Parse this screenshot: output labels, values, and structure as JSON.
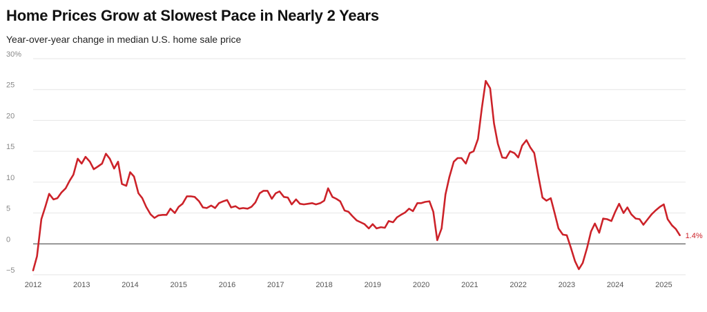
{
  "header": {
    "title": "Home Prices Grow at Slowest Pace in Nearly 2 Years",
    "subtitle": "Year-over-year change in median U.S. home sale price"
  },
  "colors": {
    "line": "#cc2229",
    "grid": "#e6e6e6",
    "zero_line": "#333333"
  },
  "chart_data": {
    "type": "line",
    "title": "Home Prices Grow at Slowest Pace in Nearly 2 Years",
    "subtitle": "Year-over-year change in median U.S. home sale price",
    "xlabel": "",
    "ylabel": "",
    "xlim": [
      2012.0,
      2025.45
    ],
    "ylim": [
      -5,
      30
    ],
    "y_ticks": [
      {
        "value": -5,
        "label": "−5"
      },
      {
        "value": 0,
        "label": "0"
      },
      {
        "value": 5,
        "label": "5"
      },
      {
        "value": 10,
        "label": "10"
      },
      {
        "value": 15,
        "label": "15"
      },
      {
        "value": 20,
        "label": "20"
      },
      {
        "value": 25,
        "label": "25"
      },
      {
        "value": 30,
        "label": "30%"
      }
    ],
    "x_ticks": [
      {
        "value": 2012,
        "label": "2012"
      },
      {
        "value": 2013,
        "label": "2013"
      },
      {
        "value": 2014,
        "label": "2014"
      },
      {
        "value": 2015,
        "label": "2015"
      },
      {
        "value": 2016,
        "label": "2016"
      },
      {
        "value": 2017,
        "label": "2017"
      },
      {
        "value": 2018,
        "label": "2018"
      },
      {
        "value": 2019,
        "label": "2019"
      },
      {
        "value": 2020,
        "label": "2020"
      },
      {
        "value": 2021,
        "label": "2021"
      },
      {
        "value": 2022,
        "label": "2022"
      },
      {
        "value": 2023,
        "label": "2023"
      },
      {
        "value": 2024,
        "label": "2024"
      },
      {
        "value": 2025,
        "label": "2025"
      }
    ],
    "grid": true,
    "legend": "none",
    "end_label": "1.4%",
    "series": [
      {
        "points": [
          [
            2012.0,
            -4.3
          ],
          [
            2012.08,
            -2.0
          ],
          [
            2012.17,
            4.0
          ],
          [
            2012.25,
            6.0
          ],
          [
            2012.33,
            8.1
          ],
          [
            2012.42,
            7.2
          ],
          [
            2012.5,
            7.4
          ],
          [
            2012.58,
            8.3
          ],
          [
            2012.67,
            9.0
          ],
          [
            2012.75,
            10.2
          ],
          [
            2012.83,
            11.2
          ],
          [
            2012.92,
            13.8
          ],
          [
            2013.0,
            13.0
          ],
          [
            2013.08,
            14.1
          ],
          [
            2013.17,
            13.3
          ],
          [
            2013.25,
            12.1
          ],
          [
            2013.33,
            12.5
          ],
          [
            2013.42,
            13.0
          ],
          [
            2013.5,
            14.6
          ],
          [
            2013.58,
            13.8
          ],
          [
            2013.67,
            12.2
          ],
          [
            2013.75,
            13.3
          ],
          [
            2013.83,
            9.7
          ],
          [
            2013.92,
            9.4
          ],
          [
            2014.0,
            11.6
          ],
          [
            2014.08,
            10.9
          ],
          [
            2014.17,
            8.2
          ],
          [
            2014.25,
            7.4
          ],
          [
            2014.33,
            6.0
          ],
          [
            2014.42,
            4.8
          ],
          [
            2014.5,
            4.2
          ],
          [
            2014.58,
            4.6
          ],
          [
            2014.67,
            4.7
          ],
          [
            2014.75,
            4.7
          ],
          [
            2014.83,
            5.7
          ],
          [
            2014.92,
            5.0
          ],
          [
            2015.0,
            6.0
          ],
          [
            2015.08,
            6.5
          ],
          [
            2015.17,
            7.7
          ],
          [
            2015.25,
            7.7
          ],
          [
            2015.33,
            7.6
          ],
          [
            2015.42,
            6.9
          ],
          [
            2015.5,
            5.9
          ],
          [
            2015.58,
            5.8
          ],
          [
            2015.67,
            6.2
          ],
          [
            2015.75,
            5.8
          ],
          [
            2015.83,
            6.6
          ],
          [
            2015.92,
            6.9
          ],
          [
            2016.0,
            7.1
          ],
          [
            2016.08,
            5.9
          ],
          [
            2016.17,
            6.1
          ],
          [
            2016.25,
            5.7
          ],
          [
            2016.33,
            5.8
          ],
          [
            2016.42,
            5.7
          ],
          [
            2016.5,
            6.0
          ],
          [
            2016.58,
            6.7
          ],
          [
            2016.67,
            8.2
          ],
          [
            2016.75,
            8.6
          ],
          [
            2016.83,
            8.6
          ],
          [
            2016.92,
            7.3
          ],
          [
            2017.0,
            8.2
          ],
          [
            2017.08,
            8.5
          ],
          [
            2017.17,
            7.6
          ],
          [
            2017.25,
            7.5
          ],
          [
            2017.33,
            6.4
          ],
          [
            2017.42,
            7.2
          ],
          [
            2017.5,
            6.5
          ],
          [
            2017.58,
            6.4
          ],
          [
            2017.67,
            6.5
          ],
          [
            2017.75,
            6.6
          ],
          [
            2017.83,
            6.4
          ],
          [
            2017.92,
            6.6
          ],
          [
            2018.0,
            7.0
          ],
          [
            2018.08,
            9.0
          ],
          [
            2018.17,
            7.6
          ],
          [
            2018.25,
            7.3
          ],
          [
            2018.33,
            6.9
          ],
          [
            2018.42,
            5.4
          ],
          [
            2018.5,
            5.2
          ],
          [
            2018.58,
            4.5
          ],
          [
            2018.67,
            3.8
          ],
          [
            2018.75,
            3.5
          ],
          [
            2018.83,
            3.2
          ],
          [
            2018.92,
            2.5
          ],
          [
            2019.0,
            3.2
          ],
          [
            2019.08,
            2.5
          ],
          [
            2019.17,
            2.7
          ],
          [
            2019.25,
            2.6
          ],
          [
            2019.33,
            3.7
          ],
          [
            2019.42,
            3.5
          ],
          [
            2019.5,
            4.3
          ],
          [
            2019.58,
            4.7
          ],
          [
            2019.67,
            5.1
          ],
          [
            2019.75,
            5.7
          ],
          [
            2019.83,
            5.3
          ],
          [
            2019.92,
            6.6
          ],
          [
            2020.0,
            6.6
          ],
          [
            2020.08,
            6.8
          ],
          [
            2020.17,
            6.9
          ],
          [
            2020.25,
            5.2
          ],
          [
            2020.33,
            0.6
          ],
          [
            2020.42,
            2.5
          ],
          [
            2020.5,
            8.0
          ],
          [
            2020.58,
            10.8
          ],
          [
            2020.67,
            13.3
          ],
          [
            2020.75,
            13.9
          ],
          [
            2020.83,
            13.9
          ],
          [
            2020.92,
            13.0
          ],
          [
            2021.0,
            14.7
          ],
          [
            2021.08,
            15.0
          ],
          [
            2021.17,
            17.0
          ],
          [
            2021.25,
            22.0
          ],
          [
            2021.33,
            26.4
          ],
          [
            2021.42,
            25.2
          ],
          [
            2021.5,
            19.5
          ],
          [
            2021.58,
            16.2
          ],
          [
            2021.67,
            14.0
          ],
          [
            2021.75,
            13.9
          ],
          [
            2021.83,
            15.0
          ],
          [
            2021.92,
            14.7
          ],
          [
            2022.0,
            14.0
          ],
          [
            2022.08,
            15.9
          ],
          [
            2022.17,
            16.8
          ],
          [
            2022.25,
            15.6
          ],
          [
            2022.33,
            14.7
          ],
          [
            2022.42,
            10.8
          ],
          [
            2022.5,
            7.5
          ],
          [
            2022.58,
            7.0
          ],
          [
            2022.67,
            7.4
          ],
          [
            2022.75,
            5.0
          ],
          [
            2022.83,
            2.5
          ],
          [
            2022.92,
            1.5
          ],
          [
            2023.0,
            1.4
          ],
          [
            2023.08,
            -0.5
          ],
          [
            2023.17,
            -2.8
          ],
          [
            2023.25,
            -4.1
          ],
          [
            2023.33,
            -3.1
          ],
          [
            2023.42,
            -0.6
          ],
          [
            2023.5,
            2.0
          ],
          [
            2023.58,
            3.3
          ],
          [
            2023.67,
            1.8
          ],
          [
            2023.75,
            4.1
          ],
          [
            2023.83,
            4.0
          ],
          [
            2023.92,
            3.7
          ],
          [
            2024.0,
            5.2
          ],
          [
            2024.08,
            6.5
          ],
          [
            2024.17,
            5.0
          ],
          [
            2024.25,
            5.9
          ],
          [
            2024.33,
            4.8
          ],
          [
            2024.42,
            4.1
          ],
          [
            2024.5,
            4.0
          ],
          [
            2024.58,
            3.1
          ],
          [
            2024.67,
            4.0
          ],
          [
            2024.75,
            4.8
          ],
          [
            2024.83,
            5.4
          ],
          [
            2024.92,
            6.0
          ],
          [
            2025.0,
            6.4
          ],
          [
            2025.08,
            4.0
          ],
          [
            2025.17,
            3.0
          ],
          [
            2025.25,
            2.4
          ],
          [
            2025.33,
            1.4
          ]
        ]
      }
    ]
  }
}
